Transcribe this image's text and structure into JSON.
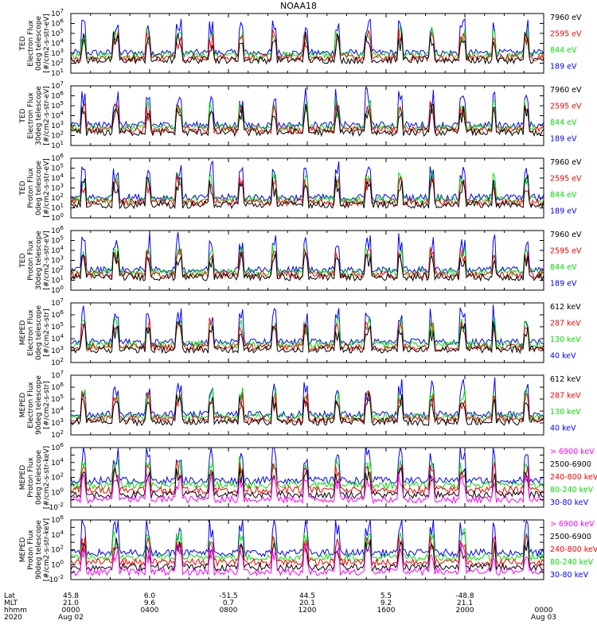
{
  "title": "NOAA18",
  "colors": {
    "black": "#000000",
    "red": "#ff0000",
    "green": "#00e000",
    "blue": "#0000ff",
    "magenta": "#ff00ff"
  },
  "time_axis": {
    "row_labels": [
      "Lat",
      "MLT",
      "hhmm",
      "2020"
    ],
    "ticks": [
      {
        "hour": 0,
        "lat": "45.8",
        "mlt": "21.0",
        "hhmm": "0000",
        "date": "Aug 02"
      },
      {
        "hour": 4,
        "lat": "6.0",
        "mlt": "9.6",
        "hhmm": "0400",
        "date": ""
      },
      {
        "hour": 8,
        "lat": "-51.5",
        "mlt": "0.7",
        "hhmm": "0800",
        "date": ""
      },
      {
        "hour": 12,
        "lat": "44.5",
        "mlt": "20.1",
        "hhmm": "1200",
        "date": ""
      },
      {
        "hour": 16,
        "lat": "5.5",
        "mlt": "9.2",
        "hhmm": "1600",
        "date": ""
      },
      {
        "hour": 20,
        "lat": "-48.8",
        "mlt": "21.1",
        "hhmm": "2000",
        "date": ""
      },
      {
        "hour": 24,
        "lat": "",
        "mlt": "",
        "hhmm": "0000",
        "date": "Aug 03"
      }
    ],
    "range_hours": [
      0,
      24
    ]
  },
  "chart_data": [
    {
      "type": "line",
      "ylabel": [
        "TED",
        "Electron Flux",
        "0deg telescope",
        "[#/cm2-s-str-eV]"
      ],
      "yexp": {
        "min": 1,
        "max": 7
      },
      "ylim": [
        10,
        10000000
      ],
      "legend": [
        {
          "label": "7960 eV",
          "color": "black"
        },
        {
          "label": "2595 eV",
          "color": "red"
        },
        {
          "label": "844 eV",
          "color": "green"
        },
        {
          "label": "189 eV",
          "color": "blue"
        }
      ]
    },
    {
      "type": "line",
      "ylabel": [
        "TED",
        "Electron Flux",
        "30deg telescope",
        "[#/cm2-s-str-eV]"
      ],
      "yexp": {
        "min": 1,
        "max": 7
      },
      "ylim": [
        10,
        10000000
      ],
      "legend": [
        {
          "label": "7960 eV",
          "color": "black"
        },
        {
          "label": "2595 eV",
          "color": "red"
        },
        {
          "label": "844 eV",
          "color": "green"
        },
        {
          "label": "189 eV",
          "color": "blue"
        }
      ]
    },
    {
      "type": "line",
      "ylabel": [
        "TED",
        "Proton Flux",
        "0deg telescope",
        "[#/cm2-s-str-eV]"
      ],
      "yexp": {
        "min": 0,
        "max": 6
      },
      "ylim": [
        1,
        1000000
      ],
      "legend": [
        {
          "label": "7960 eV",
          "color": "black"
        },
        {
          "label": "2595 eV",
          "color": "red"
        },
        {
          "label": "844 eV",
          "color": "green"
        },
        {
          "label": "189 eV",
          "color": "blue"
        }
      ]
    },
    {
      "type": "line",
      "ylabel": [
        "TED",
        "Proton Flux",
        "30deg telescope",
        "[#/cm2-s-str-eV]"
      ],
      "yexp": {
        "min": 0,
        "max": 6
      },
      "ylim": [
        1,
        1000000
      ],
      "legend": [
        {
          "label": "7960 eV",
          "color": "black"
        },
        {
          "label": "2595 eV",
          "color": "red"
        },
        {
          "label": "844 eV",
          "color": "green"
        },
        {
          "label": "189 eV",
          "color": "blue"
        }
      ]
    },
    {
      "type": "line",
      "ylabel": [
        "MEPED",
        "Electron Flux",
        "0deg telescope",
        "[#/cm2-s-str]"
      ],
      "yexp": {
        "min": 2,
        "max": 7
      },
      "ylim": [
        100,
        10000000
      ],
      "legend": [
        {
          "label": "612 keV",
          "color": "black"
        },
        {
          "label": "287 keV",
          "color": "red"
        },
        {
          "label": "130 keV",
          "color": "green"
        },
        {
          "label": "40 keV",
          "color": "blue"
        }
      ]
    },
    {
      "type": "line",
      "ylabel": [
        "MEPED",
        "Electron Flux",
        "90deg telescope",
        "[#/cm2-s-str]"
      ],
      "yexp": {
        "min": 2,
        "max": 7
      },
      "ylim": [
        100,
        10000000
      ],
      "legend": [
        {
          "label": "612 keV",
          "color": "black"
        },
        {
          "label": "287 keV",
          "color": "red"
        },
        {
          "label": "130 keV",
          "color": "green"
        },
        {
          "label": "40 keV",
          "color": "blue"
        }
      ]
    },
    {
      "type": "line",
      "ylabel": [
        "MEPED",
        "Proton Flux",
        "0deg telescope",
        "[#/cm2-s-str-keV]"
      ],
      "yexp": {
        "min": -2,
        "max": 6
      },
      "ylim": [
        0.01,
        1000000
      ],
      "legend": [
        {
          "label": "> 6900 keV",
          "color": "magenta"
        },
        {
          "label": "2500-6900",
          "color": "black"
        },
        {
          "label": "240-800 keV",
          "color": "red"
        },
        {
          "label": "80-240 keV",
          "color": "green"
        },
        {
          "label": "30-80 keV",
          "color": "blue"
        }
      ]
    },
    {
      "type": "line",
      "ylabel": [
        "MEPED",
        "Proton Flux",
        "90deg telescope",
        "[#/cm2-s-str-keV]"
      ],
      "yexp": {
        "min": -2,
        "max": 6
      },
      "ylim": [
        0.01,
        1000000
      ],
      "legend": [
        {
          "label": "> 6900 keV",
          "color": "magenta"
        },
        {
          "label": "2500-6900",
          "color": "black"
        },
        {
          "label": "240-800 keV",
          "color": "red"
        },
        {
          "label": "80-240 keV",
          "color": "green"
        },
        {
          "label": "30-80 keV",
          "color": "blue"
        }
      ]
    }
  ]
}
